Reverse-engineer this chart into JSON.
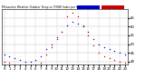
{
  "background_color": "#ffffff",
  "grid_color": "#bbbbbb",
  "legend_temp_color": "#0000cc",
  "legend_thsw_color": "#cc0000",
  "hours": [
    0,
    1,
    2,
    3,
    4,
    5,
    6,
    7,
    8,
    9,
    10,
    11,
    12,
    13,
    14,
    15,
    16,
    17,
    18,
    19,
    20,
    21,
    22,
    23
  ],
  "temp_blue": [
    44,
    43,
    42,
    41,
    40,
    40,
    41,
    43,
    47,
    50,
    54,
    57,
    61,
    63,
    62,
    60,
    57,
    53,
    50,
    48,
    47,
    46,
    45,
    44
  ],
  "thsw_red": [
    40,
    39,
    38,
    37,
    36,
    35,
    36,
    39,
    44,
    48,
    53,
    57,
    66,
    68,
    66,
    61,
    55,
    49,
    45,
    43,
    42,
    41,
    40,
    39
  ],
  "ylim": [
    38,
    70
  ],
  "ytick_values": [
    40,
    45,
    50,
    55,
    60,
    65
  ],
  "ytick_labels": [
    "40",
    "45",
    "50",
    "55",
    "60",
    "65"
  ],
  "vgrid_positions": [
    0,
    2,
    4,
    6,
    8,
    10,
    12,
    14,
    16,
    18,
    20,
    22
  ],
  "tick_fontsize": 2.8,
  "dot_size": 1.0
}
